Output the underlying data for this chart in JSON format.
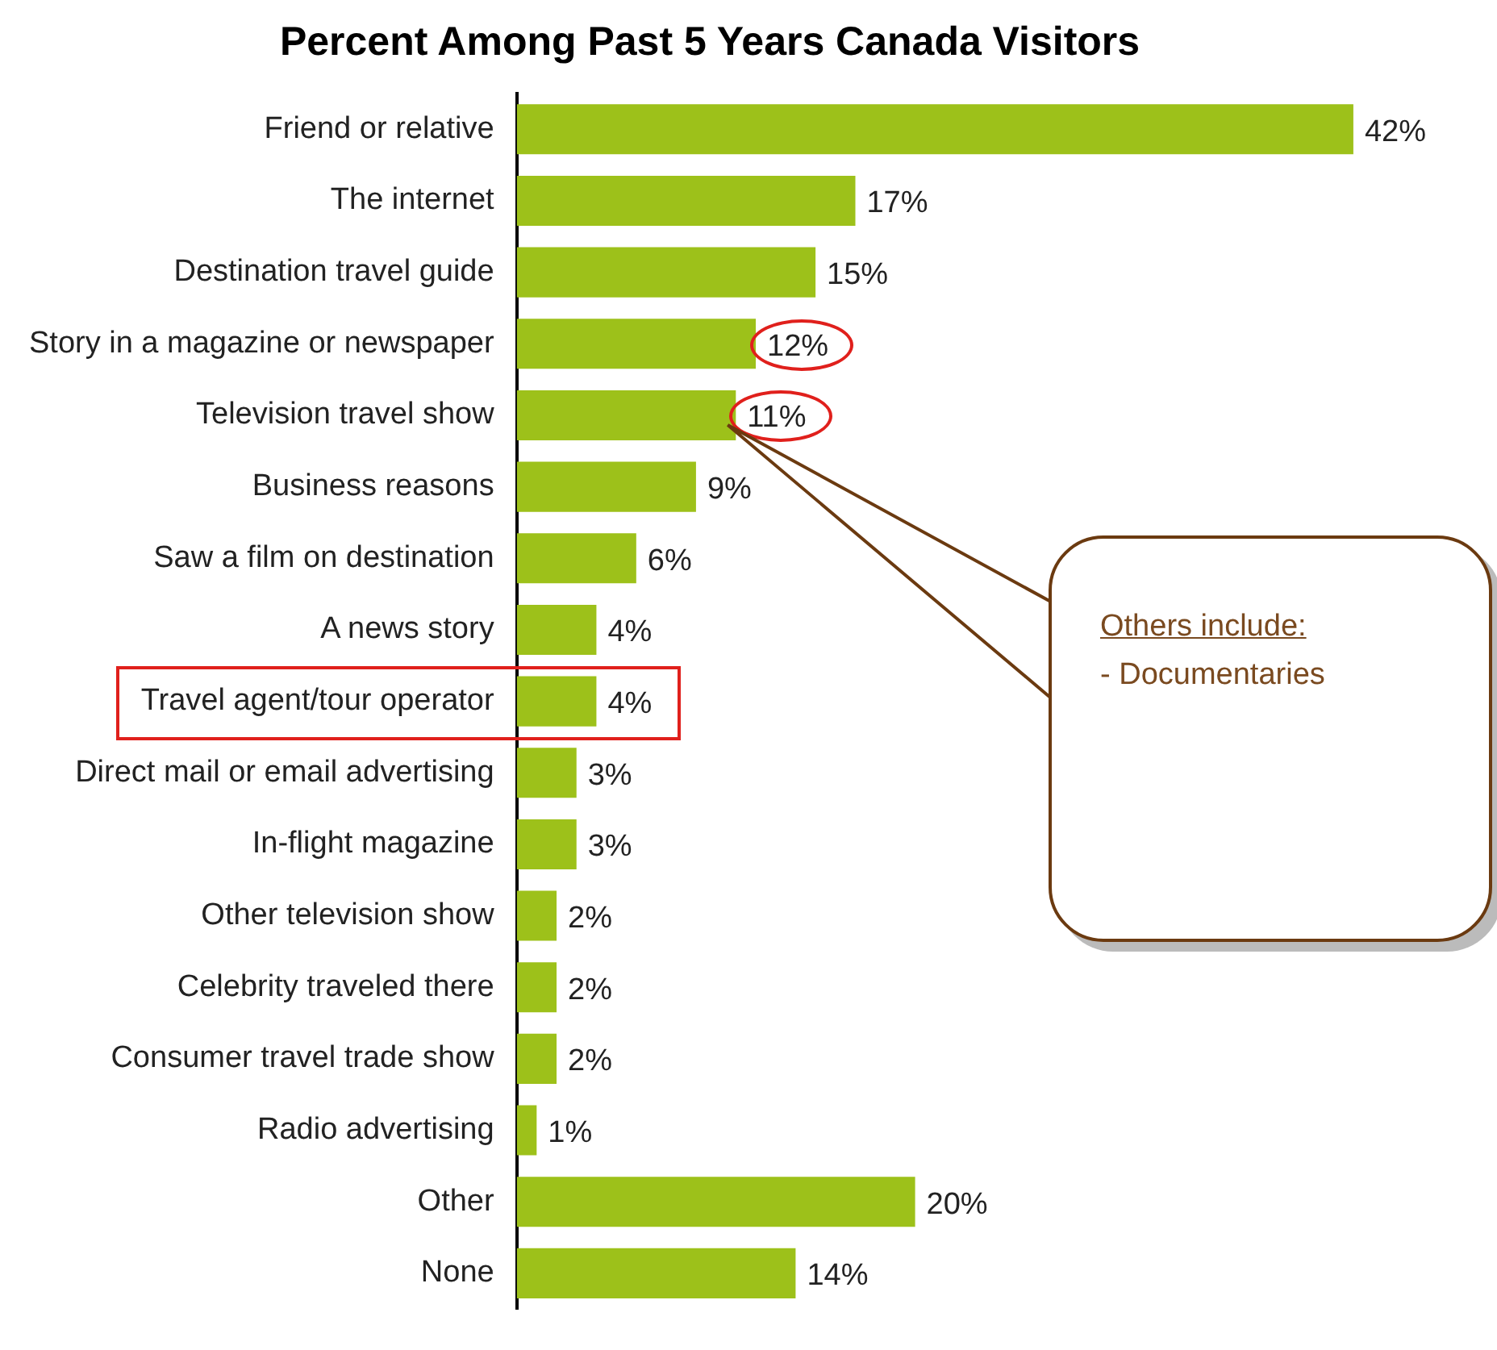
{
  "chart_data": {
    "type": "bar",
    "orientation": "horizontal",
    "title": "Percent Among Past 5 Years Canada Visitors",
    "categories": [
      "Friend or relative",
      "The internet",
      "Destination travel guide",
      "Story in a magazine or newspaper",
      "Television travel show",
      "Business reasons",
      "Saw a film on destination",
      "A news story",
      "Travel agent/tour operator",
      "Direct mail or email advertising",
      "In-flight magazine",
      "Other television show",
      "Celebrity traveled there",
      "Consumer travel trade show",
      "Radio advertising",
      "Other",
      "None"
    ],
    "values": [
      42,
      17,
      15,
      12,
      11,
      9,
      6,
      4,
      4,
      3,
      3,
      2,
      2,
      2,
      1,
      20,
      14
    ],
    "value_labels": [
      "42%",
      "17%",
      "15%",
      "12%",
      "11%",
      "9%",
      "6%",
      "4%",
      "4%",
      "3%",
      "3%",
      "2%",
      "2%",
      "2%",
      "1%",
      "20%",
      "14%"
    ],
    "color": "#9dc11a",
    "tick_labels": "y",
    "legend": false,
    "annotations": [
      "Others include:",
      "- Documentaries"
    ]
  }
}
